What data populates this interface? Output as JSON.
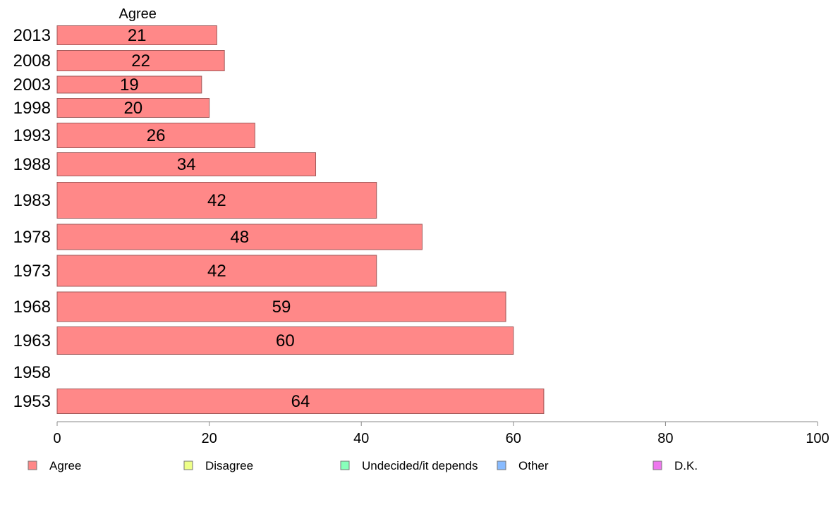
{
  "chart_data": {
    "type": "bar",
    "orientation": "horizontal",
    "column_header": "Agree",
    "categories": [
      "2013",
      "2008",
      "2003",
      "1998",
      "1993",
      "1988",
      "1983",
      "1978",
      "1973",
      "1968",
      "1963",
      "1958",
      "1953"
    ],
    "series": [
      {
        "name": "Agree",
        "values": [
          21,
          22,
          19,
          20,
          26,
          34,
          42,
          48,
          42,
          59,
          60,
          null,
          64
        ]
      }
    ],
    "xlim": [
      0,
      100
    ],
    "xticks": [
      0,
      20,
      40,
      60,
      80,
      100
    ],
    "legend": [
      "Agree",
      "Disagree",
      "Undecided/it depends",
      "Other",
      "D.K."
    ],
    "legend_position": "bottom",
    "grid": false,
    "colors": {
      "Agree": "#ff8888",
      "Disagree": "#eeff88",
      "Undecided/it depends": "#88ffbb",
      "Other": "#88bbff",
      "D.K.": "#ee77ee",
      "bar_border": "#a05a5a",
      "axis": "#888888"
    }
  }
}
